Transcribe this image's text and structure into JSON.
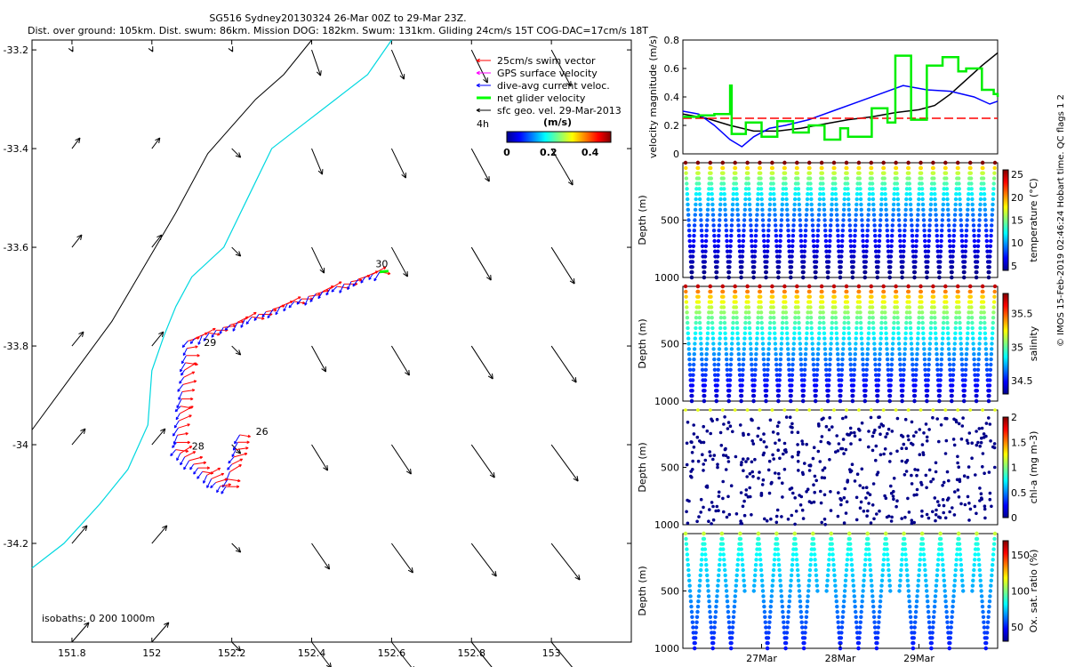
{
  "header": {
    "title_line1": "SG516 Sydney20130324 26-Mar 00Z to 29-Mar 23Z.",
    "title_line2": "Dist. over ground: 105km. Dist. swum: 86km. Mission DOG: 182km. Swum: 131km. Gliding 24cm/s 15T COG-DAC=17cm/s 18T"
  },
  "map": {
    "xticks": [
      "151.8",
      "152",
      "152.2",
      "152.4",
      "152.6",
      "152.8",
      "153"
    ],
    "yticks": [
      "-33.2",
      "-33.4",
      "-33.6",
      "-33.8",
      "-34",
      "-34.2"
    ],
    "xlim": [
      151.7,
      153.2
    ],
    "ylim": [
      -34.4,
      -33.18
    ],
    "isobath_label": "isobaths: 0   200   1000m",
    "day_labels": [
      "26",
      "28",
      "29",
      "30"
    ],
    "legend": [
      "25cm/s swim vector",
      "GPS surface velocity",
      "dive-avg current veloc.",
      "net glider velocity",
      "sfc geo. vel. 29-Mar-2013"
    ],
    "legend_note": "4h",
    "colorbar": {
      "title": "(m/s)",
      "ticks": [
        "0",
        "0.2",
        "0.4"
      ],
      "range": [
        0,
        0.5
      ]
    },
    "colors": {
      "coast": "#000000",
      "isobath": "#00d8e0",
      "swim": "#ff0000",
      "current": "#0000ff",
      "net": "#00ff00",
      "gps": "#ff00ff"
    }
  },
  "chart_data": [
    {
      "type": "line",
      "ylabel": "velocity magnitude (m/s)",
      "ylim": [
        0,
        0.8
      ],
      "yticks": [
        "0",
        "0.2",
        "0.4",
        "0.6",
        "0.8"
      ],
      "x_days": [
        0,
        4
      ],
      "series": [
        {
          "color": "#000000",
          "x": [
            0,
            0.3,
            0.6,
            0.9,
            1.2,
            1.5,
            1.8,
            2.1,
            2.4,
            2.7,
            3.0,
            3.2,
            3.4,
            3.6,
            3.8,
            4.0
          ],
          "values": [
            0.28,
            0.25,
            0.2,
            0.16,
            0.16,
            0.18,
            0.21,
            0.24,
            0.26,
            0.29,
            0.31,
            0.34,
            0.42,
            0.52,
            0.62,
            0.71
          ]
        },
        {
          "color": "#0000ff",
          "x": [
            0,
            0.2,
            0.4,
            0.6,
            0.75,
            0.9,
            1.1,
            1.3,
            1.6,
            1.9,
            2.2,
            2.5,
            2.8,
            3.1,
            3.4,
            3.7,
            3.9,
            4.0
          ],
          "values": [
            0.3,
            0.28,
            0.2,
            0.1,
            0.05,
            0.12,
            0.18,
            0.2,
            0.24,
            0.3,
            0.36,
            0.42,
            0.48,
            0.45,
            0.44,
            0.4,
            0.35,
            0.37
          ]
        },
        {
          "color": "#ff0000",
          "dashed": true,
          "x": [
            0,
            4
          ],
          "values": [
            0.25,
            0.25
          ]
        },
        {
          "color": "#00ee00",
          "step": true,
          "x": [
            0,
            0.2,
            0.4,
            0.6,
            0.62,
            0.8,
            1.0,
            1.2,
            1.4,
            1.6,
            1.8,
            2.0,
            2.1,
            2.4,
            2.6,
            2.7,
            2.9,
            3.1,
            3.3,
            3.5,
            3.6,
            3.8,
            3.95,
            4.0
          ],
          "values": [
            0.26,
            0.27,
            0.28,
            0.48,
            0.14,
            0.22,
            0.12,
            0.23,
            0.15,
            0.2,
            0.1,
            0.18,
            0.12,
            0.32,
            0.22,
            0.69,
            0.24,
            0.62,
            0.68,
            0.58,
            0.6,
            0.45,
            0.42,
            0.4
          ]
        }
      ]
    },
    {
      "type": "scatter",
      "ylabel": "Depth (m)",
      "clabel": "temperature (°C)",
      "yticks": [
        "500",
        "1000"
      ],
      "cticks": [
        "5",
        "10",
        "15",
        "20",
        "25"
      ],
      "clim": [
        4,
        26
      ],
      "profiles": 25,
      "max_depth": [
        1000
      ]
    },
    {
      "type": "scatter",
      "ylabel": "Depth (m)",
      "clabel": "salinity",
      "yticks": [
        "500",
        "1000"
      ],
      "cticks": [
        "34.5",
        "35",
        "35.5"
      ],
      "clim": [
        34.3,
        35.8
      ],
      "profiles": 25,
      "max_depth": [
        1000
      ]
    },
    {
      "type": "scatter",
      "ylabel": "Depth (m)",
      "clabel": "chl-a (mg m-3)",
      "yticks": [
        "500",
        "1000"
      ],
      "cticks": [
        "0",
        "0.5",
        "1",
        "1.5",
        "2"
      ],
      "clim": [
        0,
        2
      ],
      "profiles": 25,
      "max_depth": [
        1000
      ]
    },
    {
      "type": "scatter",
      "ylabel": "Depth (m)",
      "clabel": "Ox. sat. ratio (%)",
      "yticks": [
        "500",
        "1000"
      ],
      "cticks": [
        "50",
        "100",
        "150"
      ],
      "clim": [
        30,
        170
      ],
      "profiles": 17,
      "max_depth": [
        1000
      ]
    }
  ],
  "time_axis": {
    "ticks": [
      "27Mar",
      "28Mar",
      "29Mar"
    ]
  },
  "side_note": "© IMOS 15-Feb-2019 02:46:24 Hobart time. QC flags 1  2"
}
